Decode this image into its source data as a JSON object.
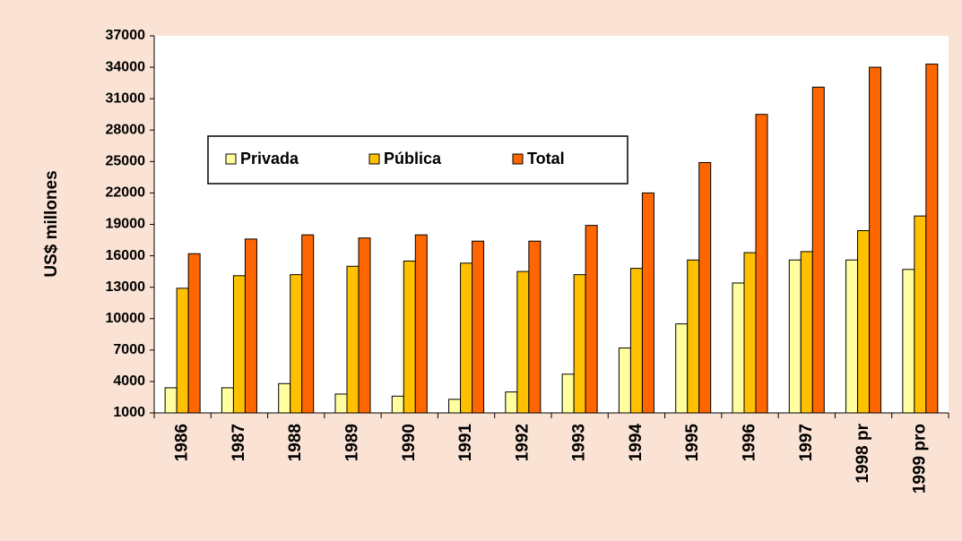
{
  "chart_data": {
    "type": "bar",
    "y_label": "US$ millones",
    "categories": [
      "1986",
      "1987",
      "1988",
      "1989",
      "1990",
      "1991",
      "1992",
      "1993",
      "1994",
      "1995",
      "1996",
      "1997",
      "1998 pr",
      "1999 pro"
    ],
    "series": [
      {
        "name": "Privada",
        "color": "#ffffa0",
        "values": [
          3400,
          3400,
          3800,
          2800,
          2600,
          2300,
          3000,
          4700,
          7200,
          9500,
          13400,
          15600,
          15600,
          14700
        ]
      },
      {
        "name": "Pública",
        "color": "#ffc000",
        "values": [
          12900,
          14100,
          14200,
          15000,
          15500,
          15300,
          14500,
          14200,
          14800,
          15600,
          16300,
          16400,
          18400,
          19800
        ]
      },
      {
        "name": "Total",
        "color": "#ff6600",
        "values": [
          16200,
          17600,
          18000,
          17700,
          18000,
          17400,
          17400,
          18900,
          22000,
          24900,
          29500,
          32100,
          34000,
          34300
        ]
      }
    ],
    "ylim": [
      1000,
      37000
    ],
    "yticks": [
      1000,
      4000,
      7000,
      10000,
      13000,
      16000,
      19000,
      22000,
      25000,
      28000,
      31000,
      34000,
      37000
    ]
  }
}
